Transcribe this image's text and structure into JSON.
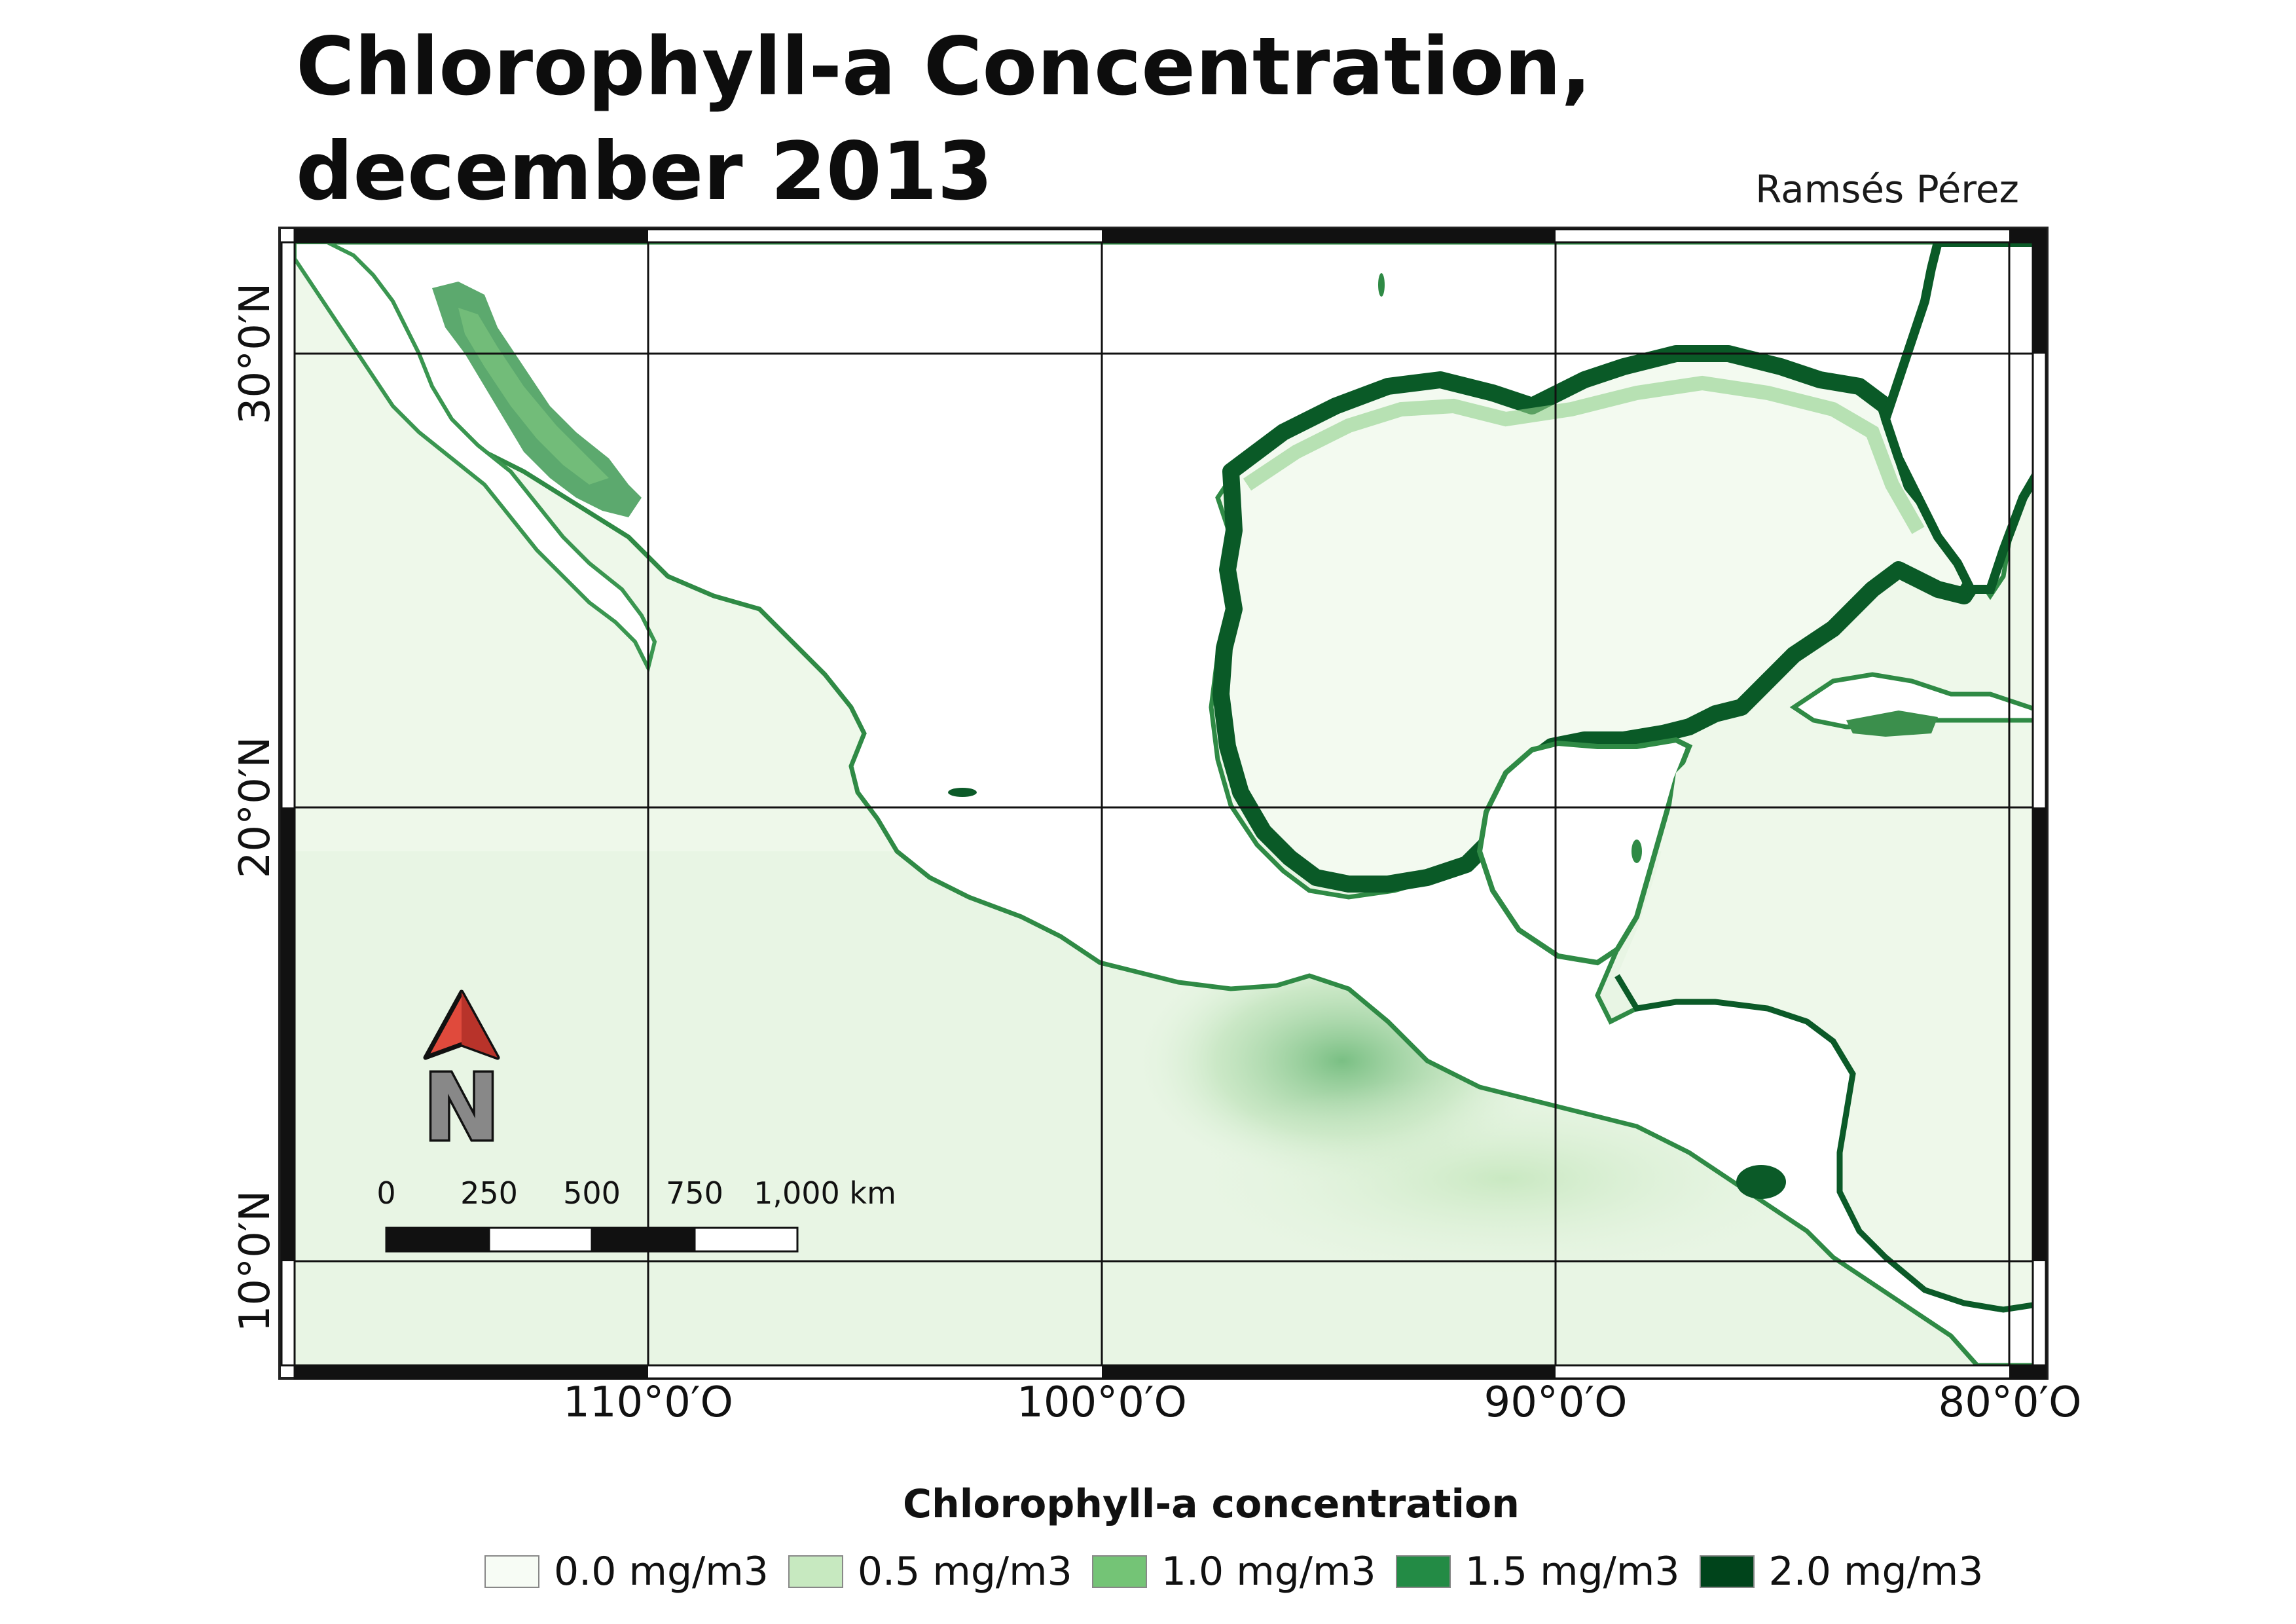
{
  "title": {
    "line1": "Chlorophyll-a Concentration,",
    "line2": "december 2013"
  },
  "author": "Ramsés Pérez",
  "map": {
    "longitude_labels": [
      "110°0′O",
      "100°0′O",
      "90°0′O",
      "80°0′O"
    ],
    "latitude_labels": [
      "30°0′N",
      "20°0′N",
      "10°0′N"
    ],
    "north_arrow_label": "N",
    "scale_bar": {
      "labels": [
        "0",
        "250",
        "500",
        "750",
        "1,000 km"
      ]
    }
  },
  "legend": {
    "title": "Chlorophyll-a concentration",
    "items": [
      {
        "label": "0.0 mg/m3",
        "color": "#f7fcf5"
      },
      {
        "label": "0.5 mg/m3",
        "color": "#c7e9c0"
      },
      {
        "label": "1.0 mg/m3",
        "color": "#74c476"
      },
      {
        "label": "1.5 mg/m3",
        "color": "#238b45"
      },
      {
        "label": "2.0 mg/m3",
        "color": "#00441b"
      }
    ]
  },
  "colors": {
    "ocean_low": "#f1f9ee",
    "ocean_mid": "#d9efd3",
    "land": "#ffffff",
    "coast_high": "#0b5a28",
    "arrow_red": "#e04a3c"
  }
}
